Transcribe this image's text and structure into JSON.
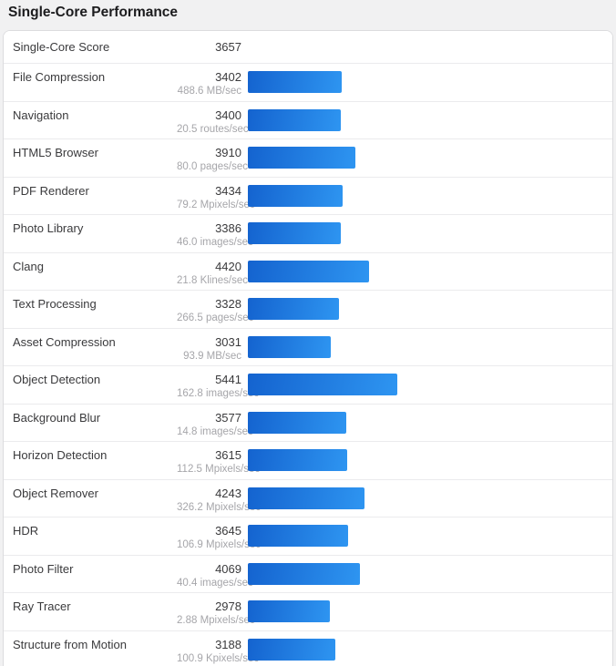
{
  "colors": {
    "bar_gradient_start": "#1463cf",
    "bar_gradient_end": "#2e95f1",
    "page_background": "#f1f1f2",
    "card_background": "#ffffff"
  },
  "chart_data": {
    "type": "bar",
    "orientation": "horizontal",
    "title": "Single-Core Performance",
    "summary_label": "Single-Core Score",
    "summary_value": "3657",
    "scale_max": 5441,
    "categories": [
      "File Compression",
      "Navigation",
      "HTML5 Browser",
      "PDF Renderer",
      "Photo Library",
      "Clang",
      "Text Processing",
      "Asset Compression",
      "Object Detection",
      "Background Blur",
      "Horizon Detection",
      "Object Remover",
      "HDR",
      "Photo Filter",
      "Ray Tracer",
      "Structure from Motion"
    ],
    "values": [
      3402,
      3400,
      3910,
      3434,
      3386,
      4420,
      3328,
      3031,
      5441,
      3577,
      3615,
      4243,
      3645,
      4069,
      2978,
      3188
    ],
    "rates": [
      "488.6 MB/sec",
      "20.5 routes/sec",
      "80.0 pages/sec",
      "79.2 Mpixels/sec",
      "46.0 images/sec",
      "21.8 Klines/sec",
      "266.5 pages/sec",
      "93.9 MB/sec",
      "162.8 images/sec",
      "14.8 images/sec",
      "112.5 Mpixels/sec",
      "326.2 Mpixels/sec",
      "106.9 Mpixels/sec",
      "40.4 images/sec",
      "2.88 Mpixels/sec",
      "100.9 Kpixels/sec"
    ],
    "legend": null,
    "grid": false
  }
}
